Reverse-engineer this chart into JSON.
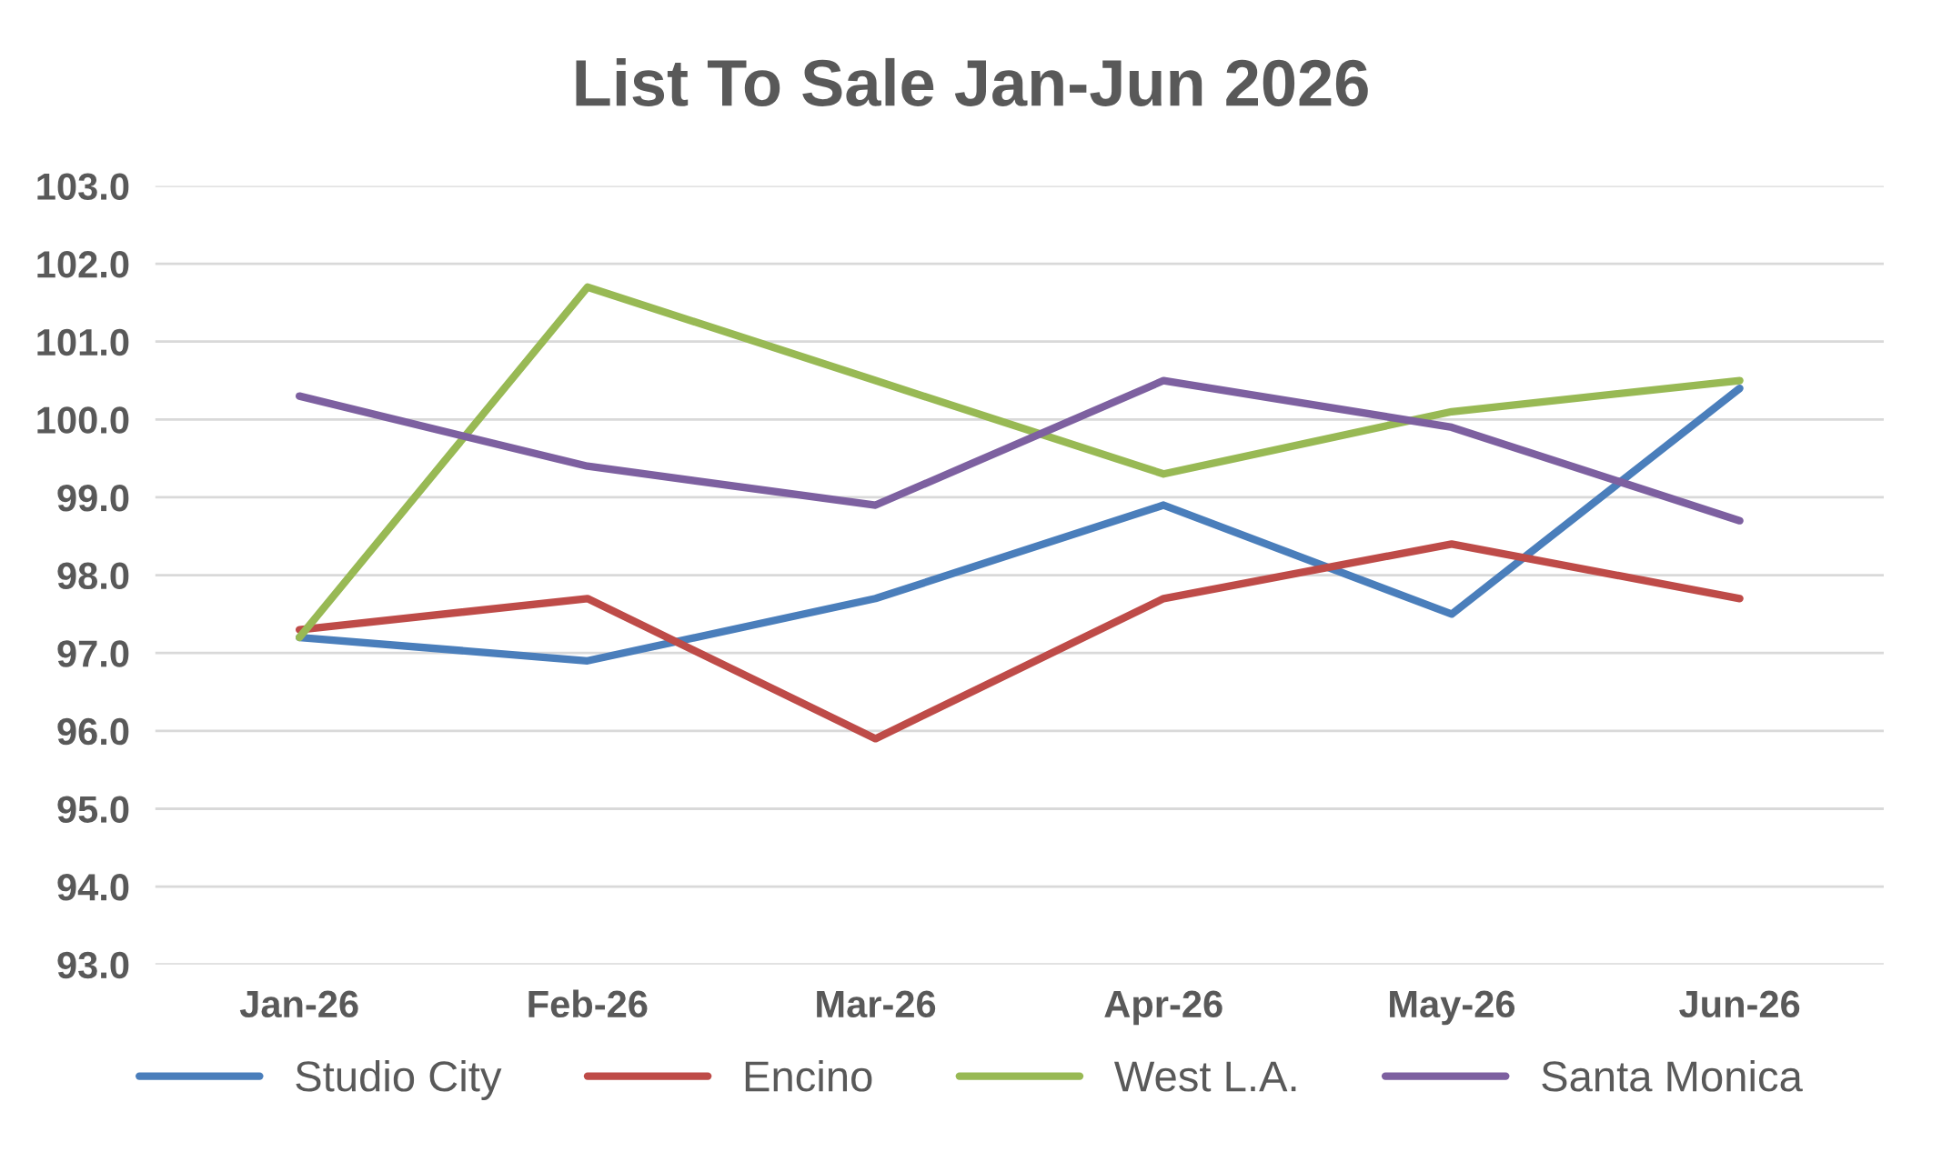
{
  "chart_data": {
    "type": "line",
    "title": "List To Sale Jan-Jun 2026",
    "categories": [
      "Jan-26",
      "Feb-26",
      "Mar-26",
      "Apr-26",
      "May-26",
      "Jun-26"
    ],
    "series": [
      {
        "name": "Studio City",
        "color": "#4a7ebb",
        "values": [
          97.2,
          96.9,
          97.7,
          98.9,
          97.5,
          100.4
        ]
      },
      {
        "name": "Encino",
        "color": "#be4b48",
        "values": [
          97.3,
          97.7,
          95.9,
          97.7,
          98.4,
          97.7
        ]
      },
      {
        "name": "West L.A.",
        "color": "#98b954",
        "values": [
          97.2,
          101.7,
          100.5,
          99.3,
          100.1,
          100.5
        ]
      },
      {
        "name": "Santa Monica",
        "color": "#7d60a0",
        "values": [
          100.3,
          99.4,
          98.9,
          100.5,
          99.9,
          98.7
        ]
      }
    ],
    "ylim": [
      93,
      103
    ],
    "yticks": [
      {
        "value": 93,
        "label": "93.0"
      },
      {
        "value": 94,
        "label": "94.0"
      },
      {
        "value": 95,
        "label": "95.0"
      },
      {
        "value": 96,
        "label": "96.0"
      },
      {
        "value": 97,
        "label": "97.0"
      },
      {
        "value": 98,
        "label": "98.0"
      },
      {
        "value": 99,
        "label": "99.0"
      },
      {
        "value": 100,
        "label": "100.0"
      },
      {
        "value": 101,
        "label": "101.0"
      },
      {
        "value": 102,
        "label": "102.0"
      },
      {
        "value": 103,
        "label": "103.0"
      }
    ],
    "grid": "y",
    "legend": "bottom",
    "marker": "none",
    "line_style": "solid"
  }
}
